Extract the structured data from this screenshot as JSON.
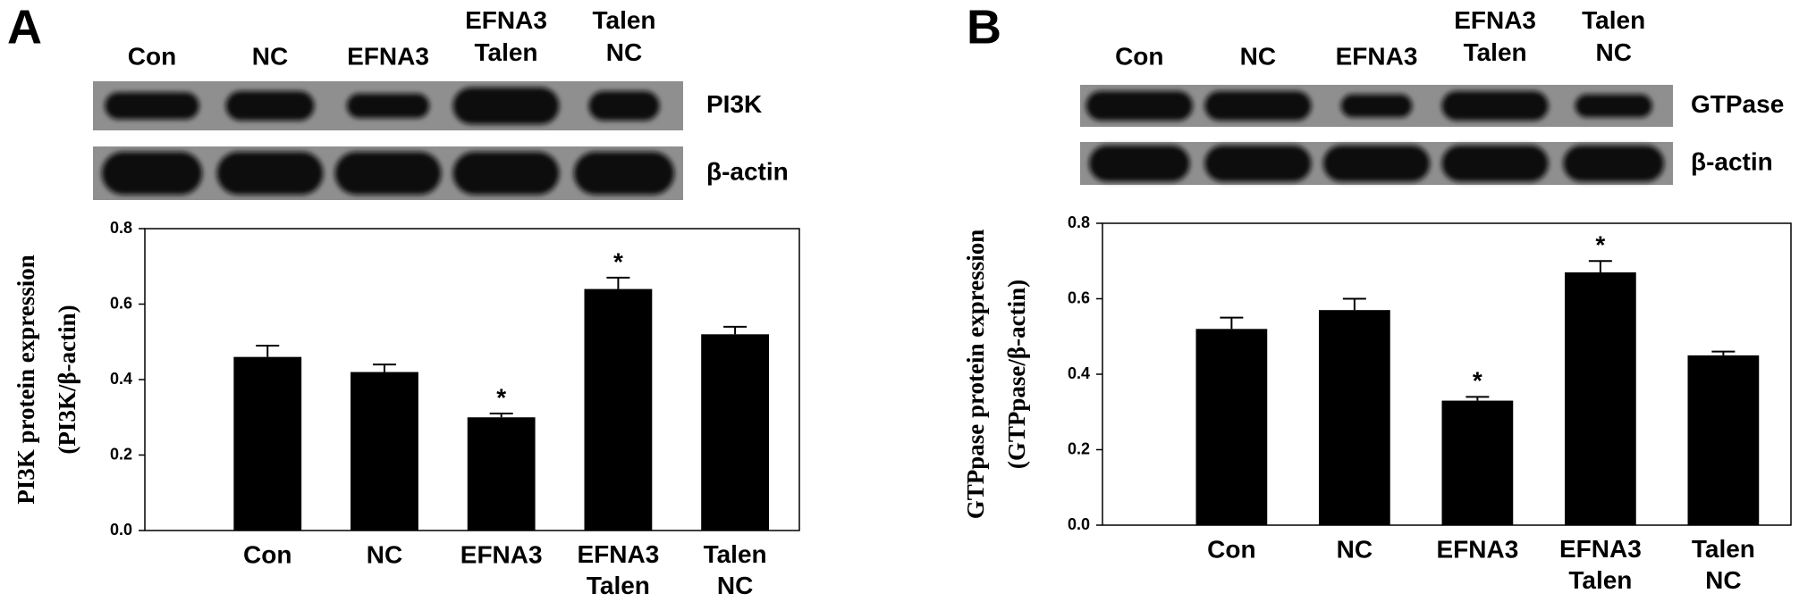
{
  "chart_data": [
    {
      "type": "bar",
      "panel": "A",
      "ylabel": [
        "PI3K protein expression",
        "(PI3K/β-actin)"
      ],
      "blot_labels": [
        "PI3K",
        "β-actin"
      ],
      "categories": [
        "Con",
        "NC",
        "EFNA3",
        "EFNA3 Talen",
        "Talen NC"
      ],
      "values": [
        0.46,
        0.42,
        0.3,
        0.64,
        0.52
      ],
      "errors": [
        0.03,
        0.02,
        0.01,
        0.03,
        0.02
      ],
      "annotations": [
        null,
        null,
        "*",
        "*",
        null
      ],
      "color": "#000000",
      "ylim": [
        0,
        0.8
      ],
      "yticks": [
        {
          "value": 0,
          "label": "0.0"
        },
        0.2,
        0.4,
        0.6,
        0.8
      ]
    },
    {
      "type": "bar",
      "panel": "B",
      "ylabel": [
        "GTPpase protein expression",
        "(GTPpase/β-actin)"
      ],
      "blot_labels": [
        "GTPase",
        "β-actin"
      ],
      "categories": [
        "Con",
        "NC",
        "EFNA3",
        "EFNA3 Talen",
        "Talen NC"
      ],
      "values": [
        0.52,
        0.57,
        0.33,
        0.67,
        0.45
      ],
      "errors": [
        0.03,
        0.03,
        0.01,
        0.03,
        0.01
      ],
      "annotations": [
        null,
        null,
        "*",
        "*",
        null
      ],
      "color": "#000000",
      "ylim": [
        0,
        0.8
      ],
      "yticks": [
        {
          "value": 0,
          "label": "0.0"
        },
        0.2,
        0.4,
        0.6,
        0.8
      ]
    }
  ]
}
